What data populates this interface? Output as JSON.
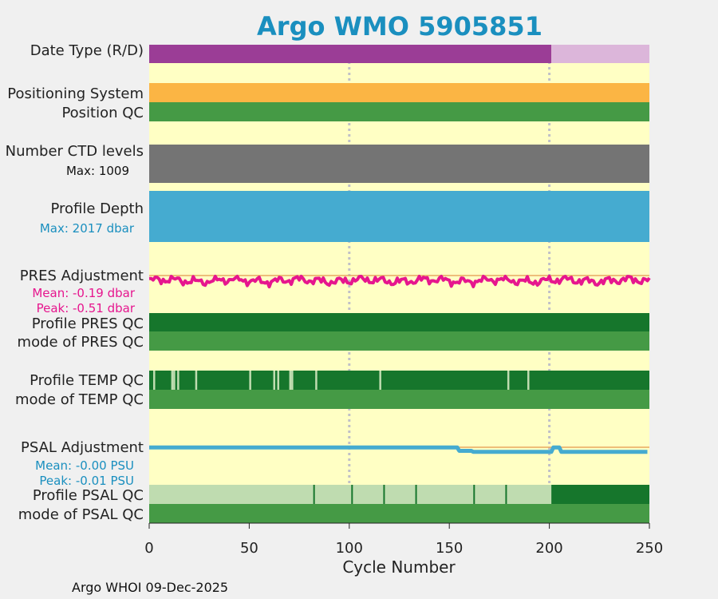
{
  "chart_data": {
    "type": "bar",
    "title": "Argo WMO 5905851",
    "xlabel": "Cycle Number",
    "xlim": [
      0,
      250
    ],
    "xticks": [
      0,
      50,
      100,
      150,
      200,
      250
    ],
    "footer": "Argo WHOI 09-Dec-2025",
    "colors": {
      "background": "#ffffc4",
      "realtime": "#9b3d96",
      "delayed": "#dcb6da",
      "positioning": "#fbb544",
      "qc_good": "#459a45",
      "qc_dark": "#16762c",
      "qc_light": "#bfdcb0",
      "ctd": "#747474",
      "depth": "#45abd0",
      "pres": "#e6168e",
      "psal": "#45abd0",
      "zero_line": "#e8a860",
      "grid": "#c0c0c8"
    },
    "rows": {
      "data_type": {
        "label": "Date Type (R/D)",
        "segments": [
          {
            "from": 0,
            "to": 201,
            "mode": "R"
          },
          {
            "from": 201,
            "to": 250,
            "mode": "D"
          }
        ]
      },
      "positioning_system": {
        "label": "Positioning System"
      },
      "position_qc": {
        "label": "Position QC"
      },
      "ctd_levels": {
        "label": "Number CTD levels",
        "max_text": "Max: 1009",
        "max_value": 1009
      },
      "profile_depth": {
        "label": "Profile Depth",
        "max_text": "Max: 2017 dbar",
        "max_value": 2017
      },
      "pres_adjustment": {
        "label": "PRES Adjustment",
        "mean_text": "Mean: -0.19 dbar",
        "peak_text": "Peak: -0.51 dbar",
        "mean": -0.19,
        "peak": -0.51
      },
      "profile_pres_qc": {
        "label": "Profile PRES QC"
      },
      "mode_pres_qc": {
        "label": "mode of PRES QC"
      },
      "profile_temp_qc": {
        "label": "Profile TEMP QC",
        "light_cycles": [
          2,
          11,
          12,
          14,
          23,
          50,
          62,
          64,
          70,
          71,
          83,
          115,
          179,
          189
        ]
      },
      "mode_temp_qc": {
        "label": "mode of TEMP QC"
      },
      "psal_adjustment": {
        "label": "PSAL Adjustment",
        "mean_text": "Mean: -0.00 PSU",
        "peak_text": "Peak: -0.01 PSU",
        "mean": -0.0,
        "peak": -0.01
      },
      "profile_psal_qc": {
        "label": "Profile PSAL QC",
        "light_until": 201,
        "dark_cycles": [
          82,
          101,
          117,
          133,
          162,
          178
        ]
      },
      "mode_psal_qc": {
        "label": "mode of PSAL QC"
      }
    }
  }
}
